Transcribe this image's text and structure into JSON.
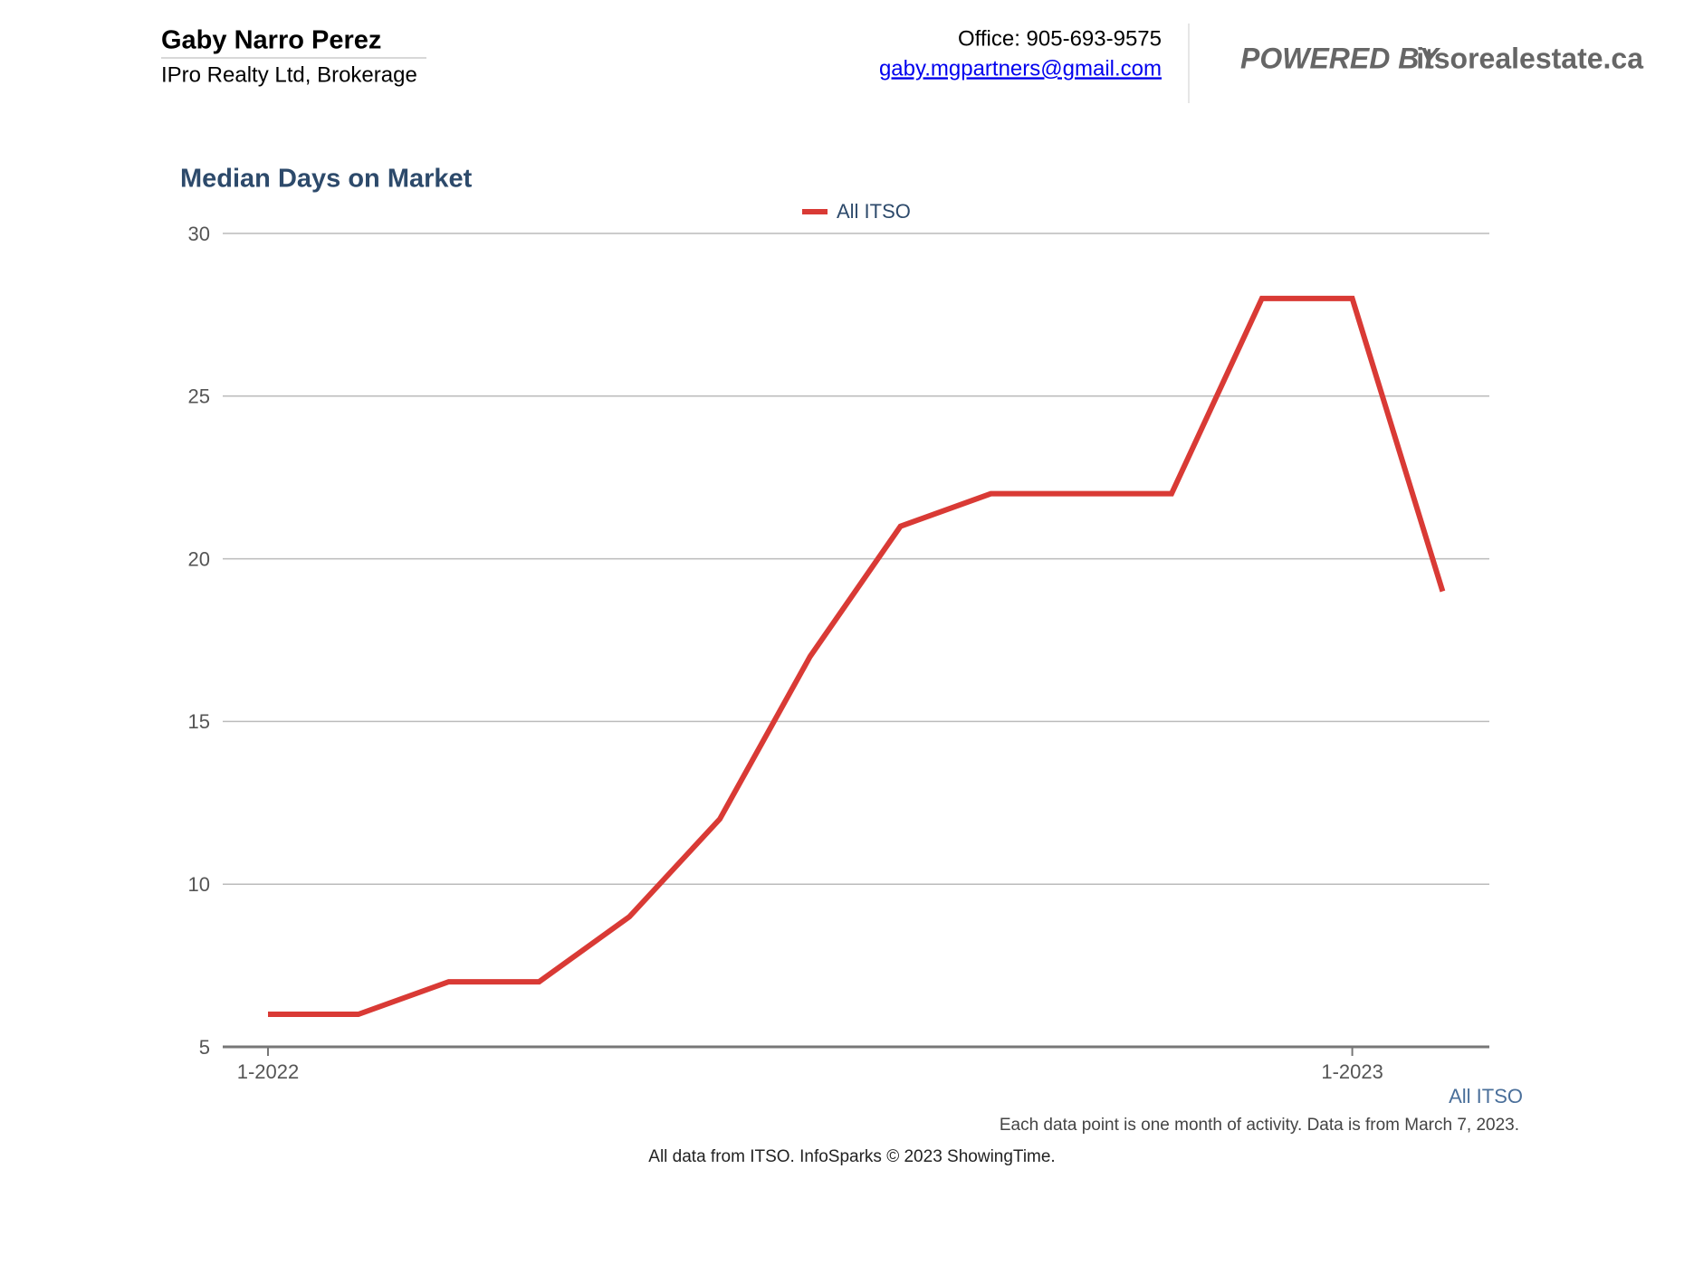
{
  "header": {
    "name": "Gaby Narro Perez",
    "company": "IPro Realty Ltd, Brokerage",
    "office": "Office: 905-693-9575",
    "email": "gaby.mgpartners@gmail.com",
    "powered_by": {
      "label": "POWERED BY",
      "site": "itsorealestate.ca"
    }
  },
  "chart_data": {
    "type": "line",
    "title": "Median Days on Market",
    "categories": [
      "1-2022",
      null,
      null,
      null,
      null,
      null,
      null,
      null,
      null,
      null,
      null,
      null,
      "1-2023",
      null
    ],
    "series": [
      {
        "name": "All ITSO",
        "color": "#d93a35",
        "values": [
          6,
          6,
          7,
          7,
          9,
          12,
          17,
          21,
          22,
          22,
          22,
          28,
          28,
          19
        ]
      }
    ],
    "ylim": [
      5,
      30
    ],
    "yticks": [
      5,
      10,
      15,
      20,
      25,
      30
    ],
    "grid": true,
    "legend": "top",
    "annotations": [
      "All ITSO",
      "Each data point is one month of activity. Data is from March 7, 2023."
    ]
  },
  "footer": "All data from ITSO. InfoSparks © 2023 ShowingTime."
}
